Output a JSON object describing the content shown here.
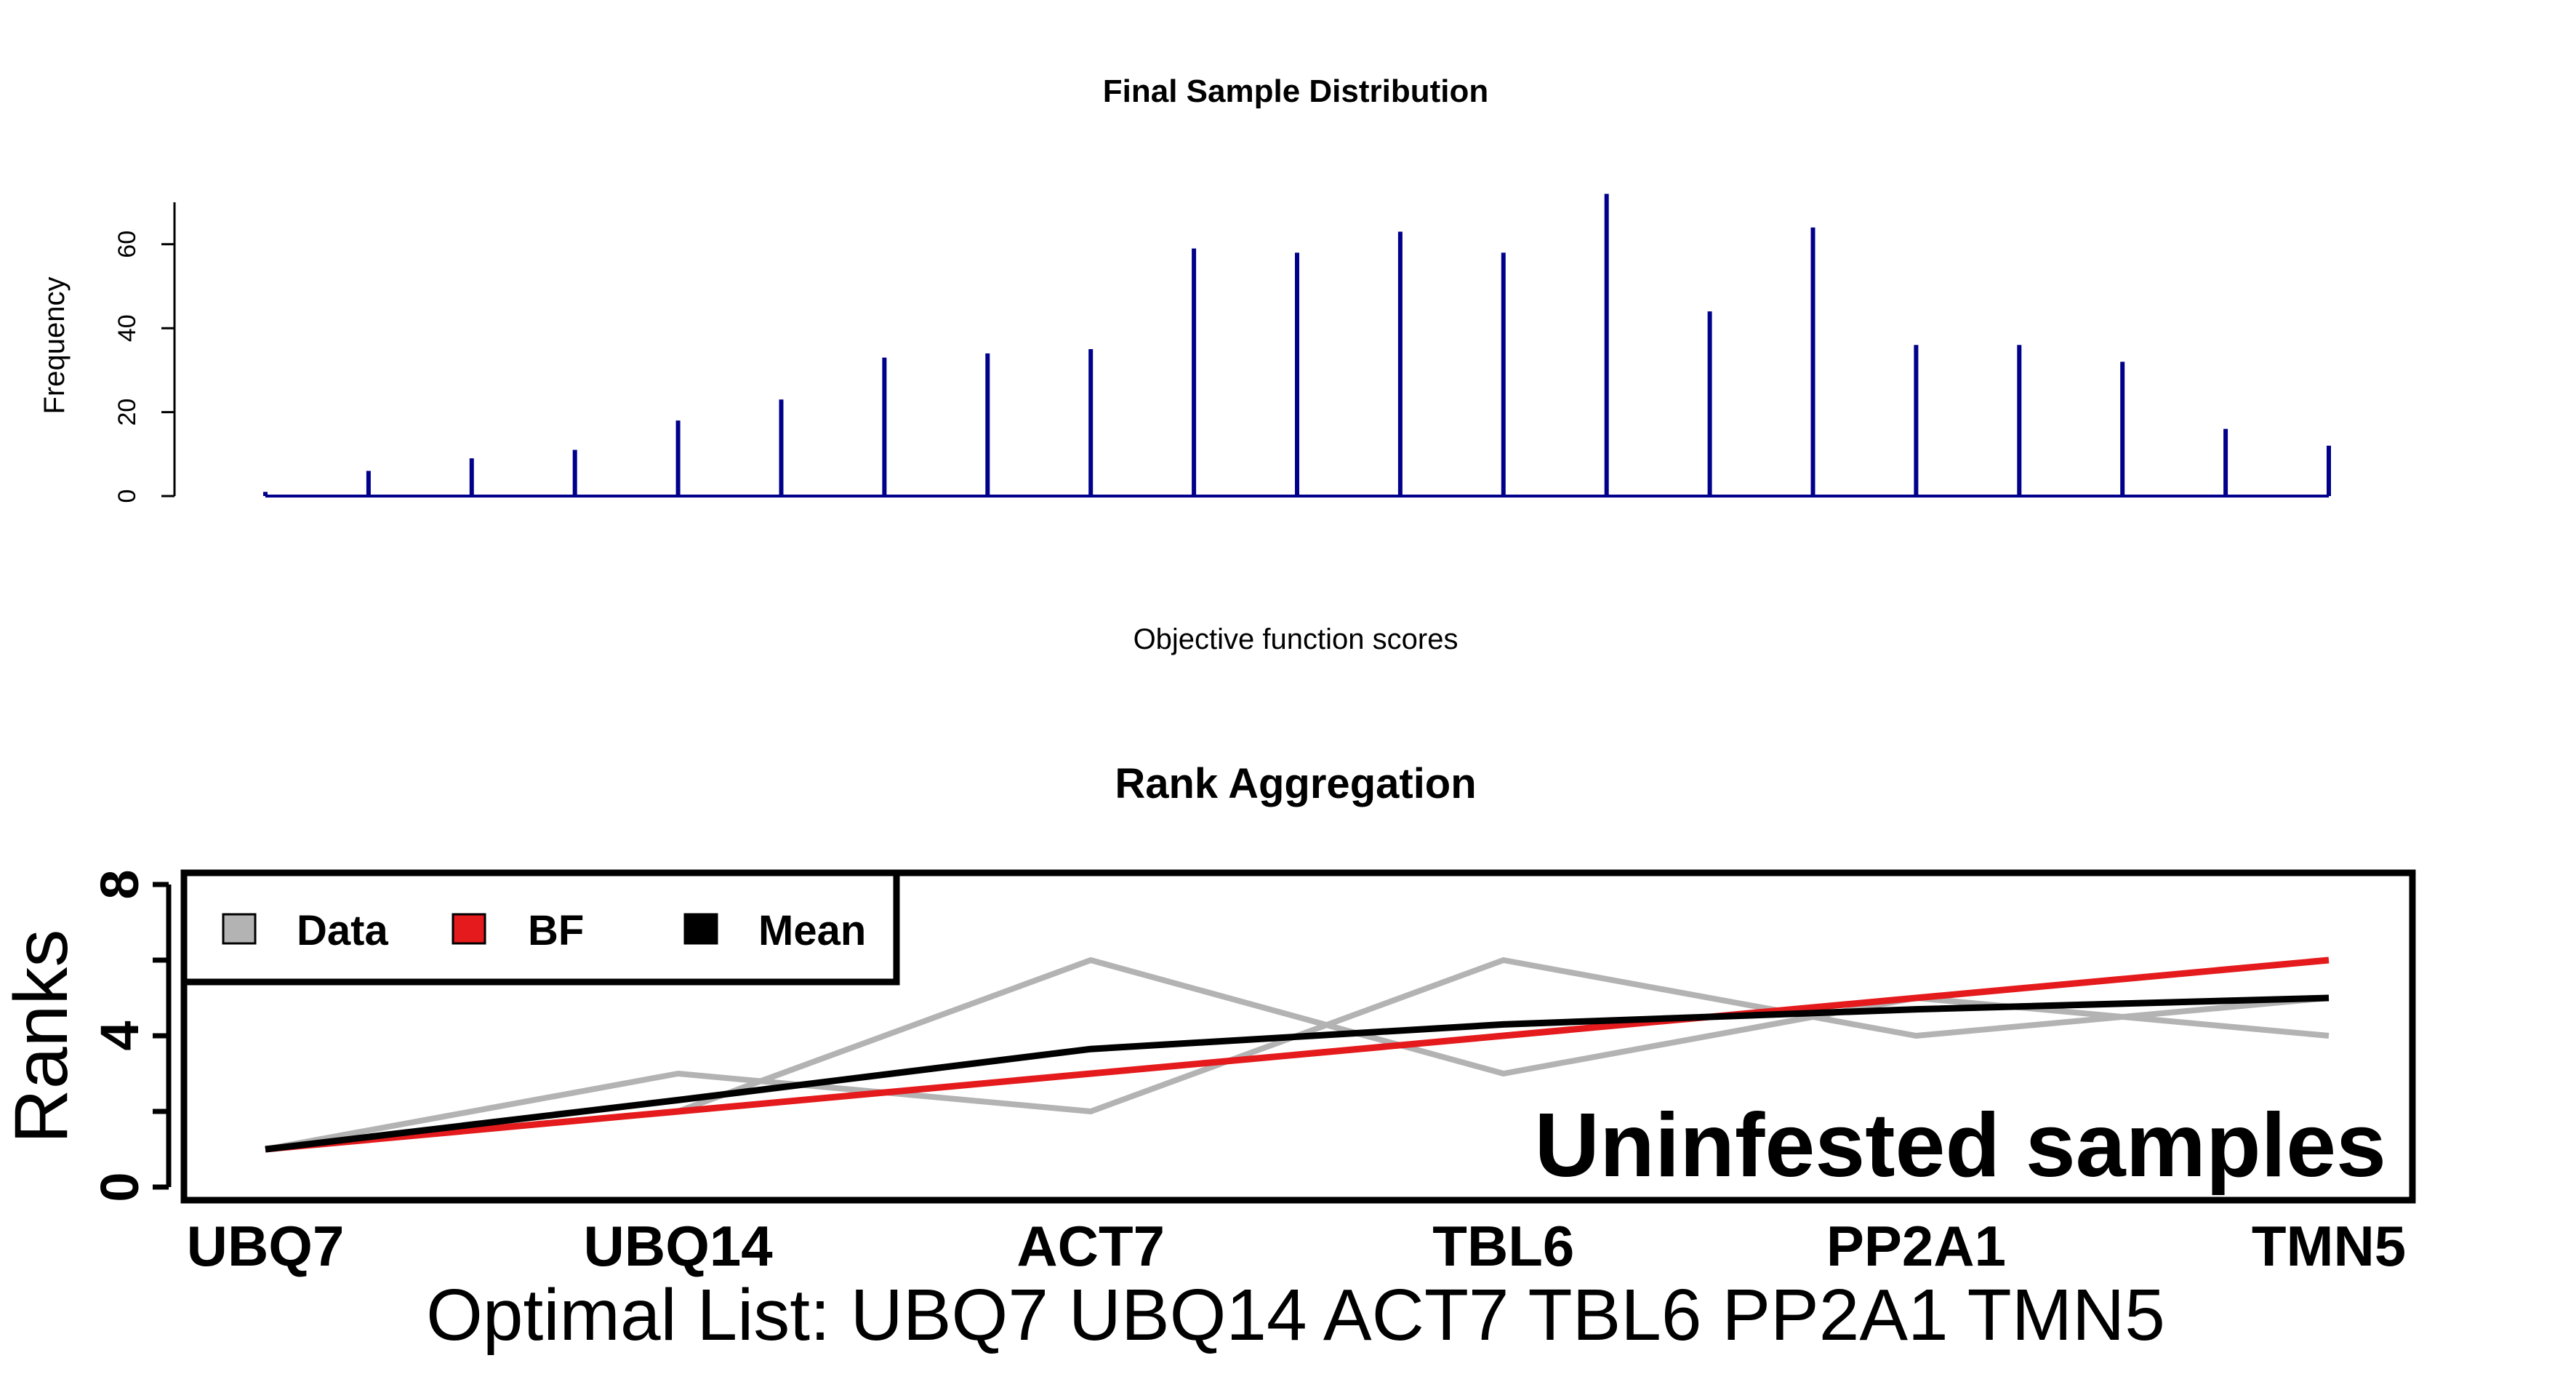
{
  "chart_data": [
    {
      "type": "bar",
      "title": "Final Sample Distribution",
      "xlabel": "Objective function scores",
      "ylabel": "Frequency",
      "ylim": [
        0,
        70
      ],
      "yticks": [
        "0",
        "20",
        "40",
        "60"
      ],
      "values": [
        1,
        6,
        9,
        11,
        18,
        23,
        33,
        34,
        35,
        59,
        58,
        63,
        58,
        72,
        44,
        64,
        36,
        36,
        32,
        16,
        12
      ],
      "bar_color": "#00008b",
      "grid": false
    },
    {
      "type": "line",
      "title": "Rank Aggregation",
      "ylabel": "Ranks",
      "ylim": [
        0,
        8
      ],
      "yticks": [
        "0",
        "4",
        "8"
      ],
      "categories": [
        "UBQ7",
        "UBQ14",
        "ACT7",
        "TBL6",
        "PP2A1",
        "TMN5"
      ],
      "subtitle": "Optimal List: UBQ7 UBQ14 ACT7 TBL6 PP2A1 TMN5",
      "annotation": "Uninfested samples",
      "legend": {
        "position": "top-left",
        "entries": [
          {
            "label": "Data",
            "color": "#b3b3b3"
          },
          {
            "label": "BF",
            "color": "#e41a1c"
          },
          {
            "label": "Mean",
            "color": "#000000"
          }
        ]
      },
      "data_series": [
        {
          "values": [
            1,
            3,
            2,
            6,
            4,
            5
          ],
          "color": "#b3b3b3"
        },
        {
          "values": [
            1,
            2,
            6,
            3,
            5,
            4
          ],
          "color": "#b3b3b3"
        }
      ],
      "series": [
        {
          "name": "BF",
          "values": [
            1,
            2,
            3,
            4,
            5,
            6
          ],
          "color": "#e41a1c"
        },
        {
          "name": "Mean",
          "values": [
            1,
            2.3,
            3.65,
            4.3,
            4.7,
            5
          ],
          "color": "#000000"
        }
      ],
      "grid": false
    }
  ]
}
